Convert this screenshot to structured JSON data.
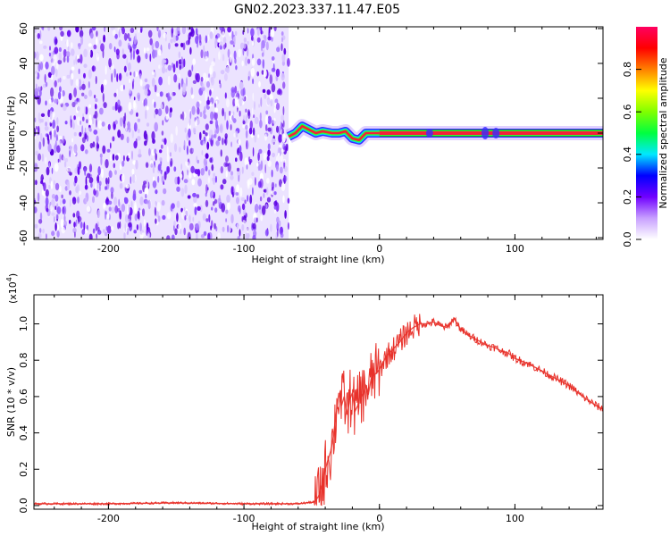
{
  "title": "GN02.2023.337.11.47.E05",
  "chart_data": [
    {
      "type": "heatmap",
      "xlabel": "Height of straight line (km)",
      "ylabel": "Frequency (Hz)",
      "xlim": [
        -255,
        165
      ],
      "ylim": [
        -61,
        61
      ],
      "xticks": [
        -200,
        -100,
        0,
        100
      ],
      "yticks": [
        -60,
        -40,
        -20,
        0,
        20,
        40,
        60
      ],
      "xtick_labels": [
        "-200",
        "-100",
        "0",
        "100"
      ],
      "ytick_labels": [
        "-60",
        "-40",
        "-20",
        "0",
        "20",
        "40",
        "60"
      ],
      "noise_region_x": [
        -255,
        -67
      ],
      "noise_color": "#6a0ef0",
      "signal_band": {
        "x_start": -67,
        "x_end": 165,
        "center_hz": 0,
        "path": [
          [
            -67,
            -2
          ],
          [
            -62,
            0
          ],
          [
            -57,
            4
          ],
          [
            -52,
            2
          ],
          [
            -47,
            0
          ],
          [
            -42,
            1
          ],
          [
            -35,
            0
          ],
          [
            -30,
            0
          ],
          [
            -25,
            1
          ],
          [
            -20,
            -3
          ],
          [
            -15,
            -4
          ],
          [
            -10,
            0
          ],
          [
            -5,
            0
          ],
          [
            0,
            0
          ],
          [
            165,
            0
          ]
        ],
        "core_color": "#f4203a",
        "edge_color": "#1a9a3a"
      },
      "colorbar": {
        "label": "Normalized spectral amplitude",
        "range": [
          0,
          1
        ],
        "ticks": [
          0.0,
          0.2,
          0.4,
          0.6,
          0.8
        ],
        "tick_labels": [
          "0.0",
          "0.2",
          "0.4",
          "0.6",
          "0.8"
        ],
        "stops": [
          "#ffffff",
          "#c8a0ff",
          "#7000ff",
          "#0000ff",
          "#00e8ff",
          "#00ff40",
          "#80ff00",
          "#ffff00",
          "#ff8000",
          "#ff0000",
          "#ff0060"
        ]
      }
    },
    {
      "type": "line",
      "xlabel": "Height of straight line (km)",
      "ylabel": "SNR (10 * v/v)",
      "scale_label": "(x10",
      "scale_exponent": "4",
      "scale_close": ")",
      "xlim": [
        -255,
        165
      ],
      "ylim": [
        -0.02,
        1.16
      ],
      "xticks": [
        -200,
        -100,
        0,
        100
      ],
      "yticks": [
        0.0,
        0.2,
        0.4,
        0.6,
        0.8,
        1.0
      ],
      "xtick_labels": [
        "-200",
        "-100",
        "0",
        "100"
      ],
      "ytick_labels": [
        "0.0",
        "0.2",
        "0.4",
        "0.6",
        "0.8",
        "1.0"
      ],
      "series": [
        {
          "color": "#e8312a",
          "x": [
            -255,
            -200,
            -150,
            -100,
            -60,
            -48,
            -45,
            -42,
            -40,
            -38,
            -36,
            -34,
            -32,
            -30,
            -28,
            -26,
            -24,
            -22,
            -20,
            -18,
            -16,
            -14,
            -12,
            -10,
            -8,
            -6,
            -4,
            -2,
            0,
            5,
            10,
            15,
            20,
            25,
            30,
            35,
            40,
            45,
            50,
            55,
            60,
            65,
            70,
            75,
            80,
            85,
            90,
            95,
            100,
            110,
            120,
            130,
            140,
            150,
            160,
            165
          ],
          "y": [
            0.01,
            0.01,
            0.015,
            0.01,
            0.01,
            0.02,
            0.05,
            0.12,
            0.2,
            0.25,
            0.3,
            0.38,
            0.5,
            0.62,
            0.55,
            0.6,
            0.5,
            0.58,
            0.62,
            0.52,
            0.55,
            0.63,
            0.6,
            0.66,
            0.62,
            0.7,
            0.72,
            0.73,
            0.75,
            0.82,
            0.86,
            0.9,
            0.95,
            0.98,
            1.0,
            1.0,
            1.01,
            0.99,
            0.98,
            1.03,
            0.97,
            0.94,
            0.92,
            0.9,
            0.88,
            0.87,
            0.85,
            0.84,
            0.81,
            0.78,
            0.74,
            0.7,
            0.66,
            0.6,
            0.55,
            0.53
          ]
        }
      ]
    }
  ]
}
